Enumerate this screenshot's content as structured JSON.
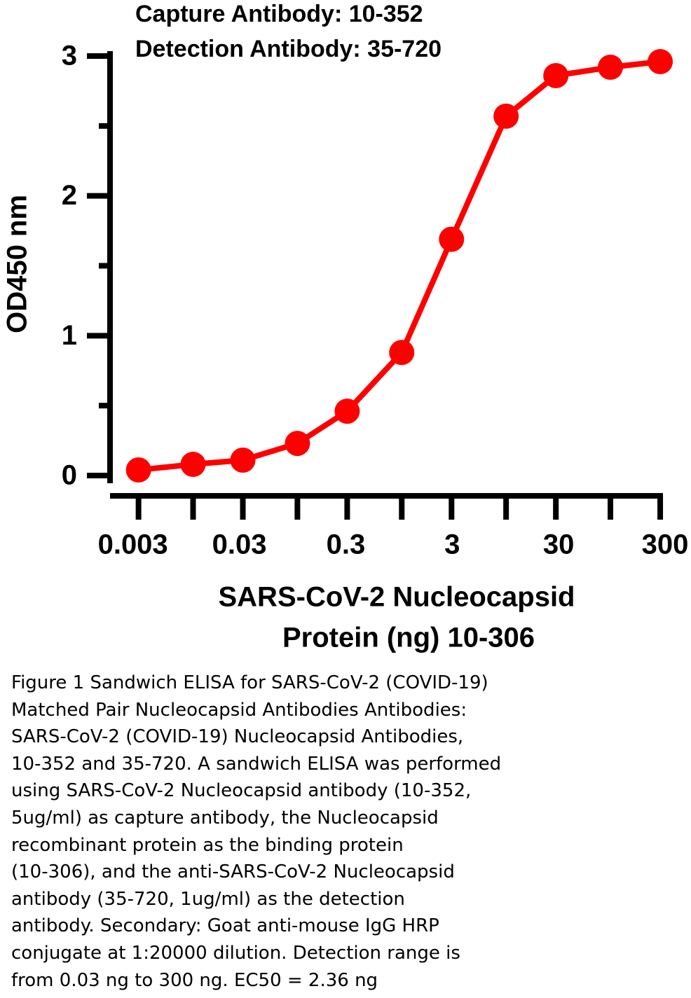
{
  "chart_data": {
    "type": "line",
    "title_lines": [
      "Capture Antibody: 10-352",
      "Detection Antibody: 35-720"
    ],
    "y_label": "OD450 nm",
    "x_label_lines": [
      "SARS-CoV-2 Nucleocapsid",
      "Protein (ng) 10-306"
    ],
    "x_scale": "log",
    "x": [
      0.003,
      0.01,
      0.03,
      0.1,
      0.3,
      1,
      3,
      10,
      30,
      100,
      300
    ],
    "series": [
      {
        "color": "#ff0000",
        "values": [
          0.04,
          0.08,
          0.11,
          0.23,
          0.46,
          0.88,
          1.69,
          2.57,
          2.86,
          2.92,
          2.96
        ]
      }
    ],
    "xlim": [
      0.0016,
      314
    ],
    "ylim": [
      -0.05,
      3.03
    ],
    "xticks": [
      0.003,
      0.03,
      0.3,
      3,
      30,
      300
    ],
    "xminor_ticks": [
      0.01,
      0.1,
      1,
      10,
      100
    ],
    "yticks": [
      0,
      1,
      2,
      3
    ],
    "yminor_ticks": [
      0.5,
      1.5,
      2.5
    ],
    "grid": false
  },
  "caption": [
    "Figure 1 Sandwich ELISA for SARS-CoV-2 (COVID-19)",
    "Matched Pair Nucleocapsid Antibodies Antibodies:",
    "SARS-CoV-2 (COVID-19) Nucleocapsid Antibodies,",
    "10-352 and 35-720. A sandwich ELISA was performed",
    "using SARS-CoV-2 Nucleocapsid antibody (10-352,",
    "5ug/ml) as capture antibody, the Nucleocapsid",
    "recombinant protein as the binding protein",
    "(10-306), and the anti-SARS-CoV-2 Nucleocapsid",
    "antibody (35-720, 1ug/ml) as the detection",
    "antibody. Secondary: Goat anti-mouse IgG HRP",
    "conjugate at 1:20000 dilution. Detection range is",
    "from 0.03 ng to 300 ng. EC50 = 2.36 ng"
  ]
}
